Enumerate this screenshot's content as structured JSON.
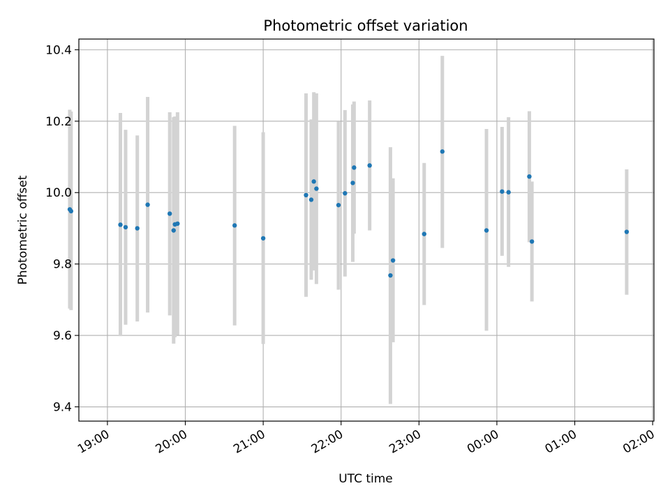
{
  "chart_data": {
    "type": "scatter",
    "title": "Photometric offset variation",
    "xlabel": "UTC time",
    "ylabel": "Photometric offset",
    "x_unit": "UTC time (HH:MM), runs past midnight into next day",
    "xlim": [
      "18:38",
      "02:01"
    ],
    "ylim": [
      9.36,
      10.43
    ],
    "grid": true,
    "x_ticks": [
      "19:00",
      "20:00",
      "21:00",
      "22:00",
      "23:00",
      "00:00",
      "01:00",
      "02:00"
    ],
    "y_ticks": [
      9.4,
      9.6,
      9.8,
      10.0,
      10.2,
      10.4
    ],
    "y_tick_labels": [
      "9.4",
      "9.6",
      "9.8",
      "10.0",
      "10.2",
      "10.4"
    ],
    "marker_color": "#1f77b4",
    "errorbar_color": "#d3d3d3",
    "points": [
      {
        "t": "18:31",
        "y": 9.953,
        "lo": 9.675,
        "hi": 10.232
      },
      {
        "t": "18:32",
        "y": 9.948,
        "lo": 9.671,
        "hi": 10.227
      },
      {
        "t": "19:10",
        "y": 9.91,
        "lo": 9.598,
        "hi": 10.223
      },
      {
        "t": "19:14",
        "y": 9.903,
        "lo": 9.63,
        "hi": 10.176
      },
      {
        "t": "19:23",
        "y": 9.9,
        "lo": 9.639,
        "hi": 10.16
      },
      {
        "t": "19:31",
        "y": 9.966,
        "lo": 9.664,
        "hi": 10.268
      },
      {
        "t": "19:48",
        "y": 9.941,
        "lo": 9.656,
        "hi": 10.225
      },
      {
        "t": "19:51",
        "y": 9.894,
        "lo": 9.577,
        "hi": 10.211
      },
      {
        "t": "19:52",
        "y": 9.911,
        "lo": 9.595,
        "hi": 10.213
      },
      {
        "t": "19:54",
        "y": 9.913,
        "lo": 9.601,
        "hi": 10.225
      },
      {
        "t": "20:38",
        "y": 9.908,
        "lo": 9.628,
        "hi": 10.187
      },
      {
        "t": "21:00",
        "y": 9.872,
        "lo": 9.576,
        "hi": 10.169
      },
      {
        "t": "21:33",
        "y": 9.993,
        "lo": 9.708,
        "hi": 10.278
      },
      {
        "t": "21:37",
        "y": 9.98,
        "lo": 9.756,
        "hi": 10.205
      },
      {
        "t": "21:39",
        "y": 10.031,
        "lo": 9.782,
        "hi": 10.281
      },
      {
        "t": "21:41",
        "y": 10.011,
        "lo": 9.744,
        "hi": 10.278
      },
      {
        "t": "21:58",
        "y": 9.965,
        "lo": 9.728,
        "hi": 10.199
      },
      {
        "t": "22:03",
        "y": 9.998,
        "lo": 9.765,
        "hi": 10.231
      },
      {
        "t": "22:09",
        "y": 10.027,
        "lo": 9.806,
        "hi": 10.247
      },
      {
        "t": "22:10",
        "y": 10.07,
        "lo": 9.885,
        "hi": 10.255
      },
      {
        "t": "22:22",
        "y": 10.076,
        "lo": 9.894,
        "hi": 10.258
      },
      {
        "t": "22:38",
        "y": 9.768,
        "lo": 9.408,
        "hi": 10.127
      },
      {
        "t": "22:40",
        "y": 9.81,
        "lo": 9.581,
        "hi": 10.04
      },
      {
        "t": "23:04",
        "y": 9.884,
        "lo": 9.685,
        "hi": 10.083
      },
      {
        "t": "23:18",
        "y": 10.115,
        "lo": 9.845,
        "hi": 10.383
      },
      {
        "t": "23:52",
        "y": 9.894,
        "lo": 9.613,
        "hi": 10.178
      },
      {
        "t": "00:04",
        "y": 10.003,
        "lo": 9.823,
        "hi": 10.184
      },
      {
        "t": "00:09",
        "y": 10.001,
        "lo": 9.792,
        "hi": 10.211
      },
      {
        "t": "00:25",
        "y": 10.045,
        "lo": 9.861,
        "hi": 10.228
      },
      {
        "t": "00:27",
        "y": 9.863,
        "lo": 9.695,
        "hi": 10.031
      },
      {
        "t": "01:40",
        "y": 9.89,
        "lo": 9.714,
        "hi": 10.065
      }
    ]
  }
}
